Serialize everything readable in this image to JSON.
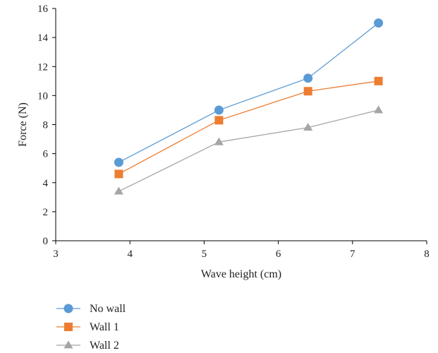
{
  "chart_data": {
    "type": "line",
    "title": "",
    "xlabel": "Wave height (cm)",
    "ylabel": "Force (N)",
    "xlim": [
      3,
      8
    ],
    "ylim": [
      0,
      16
    ],
    "x_ticks": [
      "3",
      "4",
      "5",
      "6",
      "7",
      "8"
    ],
    "y_ticks": [
      "0",
      "2",
      "4",
      "6",
      "8",
      "10",
      "12",
      "14",
      "16"
    ],
    "grid": false,
    "legend_position": "bottom-left",
    "series": [
      {
        "name": "No wall",
        "color": "#5B9BD5",
        "marker": "circle",
        "points": [
          {
            "x": 3.85,
            "y": 5.4
          },
          {
            "x": 5.2,
            "y": 9.0
          },
          {
            "x": 6.4,
            "y": 11.2
          },
          {
            "x": 7.35,
            "y": 15.0
          }
        ]
      },
      {
        "name": "Wall 1",
        "color": "#ED7D31",
        "marker": "square",
        "points": [
          {
            "x": 3.85,
            "y": 4.6
          },
          {
            "x": 5.2,
            "y": 8.3
          },
          {
            "x": 6.4,
            "y": 10.3
          },
          {
            "x": 7.35,
            "y": 11.0
          }
        ]
      },
      {
        "name": "Wall 2",
        "color": "#A5A5A5",
        "marker": "triangle",
        "points": [
          {
            "x": 3.85,
            "y": 3.4
          },
          {
            "x": 5.2,
            "y": 6.8
          },
          {
            "x": 6.4,
            "y": 7.8
          },
          {
            "x": 7.35,
            "y": 9.0
          }
        ]
      }
    ]
  }
}
